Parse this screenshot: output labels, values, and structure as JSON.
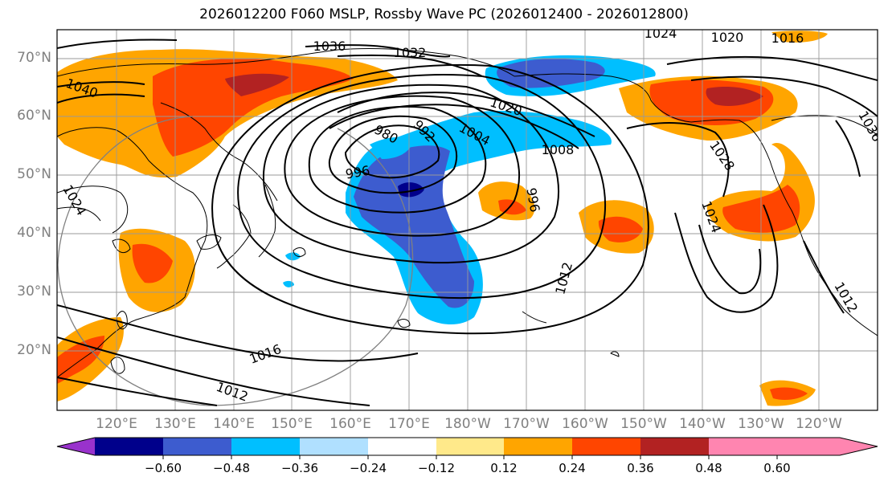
{
  "title": "2026012200 F060 MSLP, Rossby Wave PC (2026012400 - 2026012800)",
  "lat_labels": [
    "70°N",
    "60°N",
    "50°N",
    "40°N",
    "30°N",
    "20°N"
  ],
  "lon_labels": [
    "120°E",
    "130°E",
    "140°E",
    "150°E",
    "160°E",
    "170°E",
    "180°W",
    "170°W",
    "160°W",
    "150°W",
    "140°W",
    "130°W",
    "120°W"
  ],
  "contour_labels": [
    "1036",
    "1032",
    "1024",
    "1020",
    "1016",
    "1040",
    "1020",
    "1004",
    "1008",
    "992",
    "980",
    "996",
    "996",
    "1028",
    "1024",
    "1012",
    "1016",
    "1012",
    "1012",
    "1024",
    "1036"
  ],
  "colorbar": {
    "ticks": [
      "−0.60",
      "−0.48",
      "−0.36",
      "−0.24",
      "−0.12",
      "0.12",
      "0.24",
      "0.36",
      "0.48",
      "0.60"
    ],
    "colors": [
      "#9932cc",
      "#00008b",
      "#3d5ccf",
      "#00bfff",
      "#b0e0ff",
      "#ffffff",
      "#ffe98a",
      "#ffa500",
      "#ff4500",
      "#b22222",
      "#ff85b0"
    ]
  }
}
